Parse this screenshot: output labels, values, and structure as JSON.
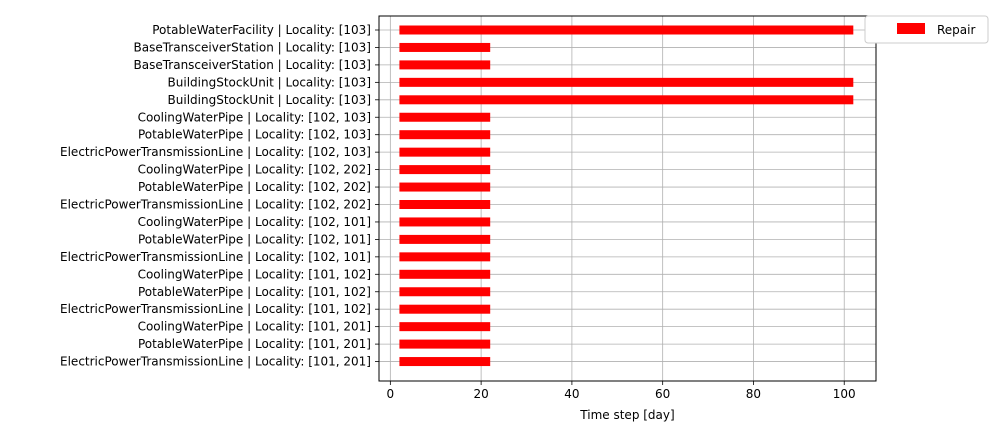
{
  "chart_data": {
    "type": "bar",
    "orientation": "horizontal",
    "title": "",
    "xlabel": "Time step [day]",
    "ylabel": "",
    "xlim": [
      -2.5,
      107
    ],
    "xticks": [
      0,
      20,
      40,
      60,
      80,
      100
    ],
    "grid": true,
    "legend": {
      "position": "outside-top-right",
      "entries": [
        "Repair"
      ]
    },
    "series": [
      {
        "name": "Repair",
        "color": "#ff0000"
      }
    ],
    "categories": [
      "PotableWaterFacility | Locality: [103]",
      "BaseTransceiverStation | Locality: [103]",
      "BaseTransceiverStation | Locality: [103]",
      "BuildingStockUnit | Locality: [103]",
      "BuildingStockUnit | Locality: [103]",
      "CoolingWaterPipe | Locality: [102, 103]",
      "PotableWaterPipe | Locality: [102, 103]",
      "ElectricPowerTransmissionLine | Locality: [102, 103]",
      "CoolingWaterPipe | Locality: [102, 202]",
      "PotableWaterPipe | Locality: [102, 202]",
      "ElectricPowerTransmissionLine | Locality: [102, 202]",
      "CoolingWaterPipe | Locality: [102, 101]",
      "PotableWaterPipe | Locality: [102, 101]",
      "ElectricPowerTransmissionLine | Locality: [102, 101]",
      "CoolingWaterPipe | Locality: [101, 102]",
      "PotableWaterPipe | Locality: [101, 102]",
      "ElectricPowerTransmissionLine | Locality: [101, 102]",
      "CoolingWaterPipe | Locality: [101, 201]",
      "PotableWaterPipe | Locality: [101, 201]",
      "ElectricPowerTransmissionLine | Locality: [101, 201]"
    ],
    "start": [
      2,
      2,
      2,
      2,
      2,
      2,
      2,
      2,
      2,
      2,
      2,
      2,
      2,
      2,
      2,
      2,
      2,
      2,
      2,
      2
    ],
    "end": [
      102,
      22,
      22,
      102,
      102,
      22,
      22,
      22,
      22,
      22,
      22,
      22,
      22,
      22,
      22,
      22,
      22,
      22,
      22,
      22
    ]
  }
}
